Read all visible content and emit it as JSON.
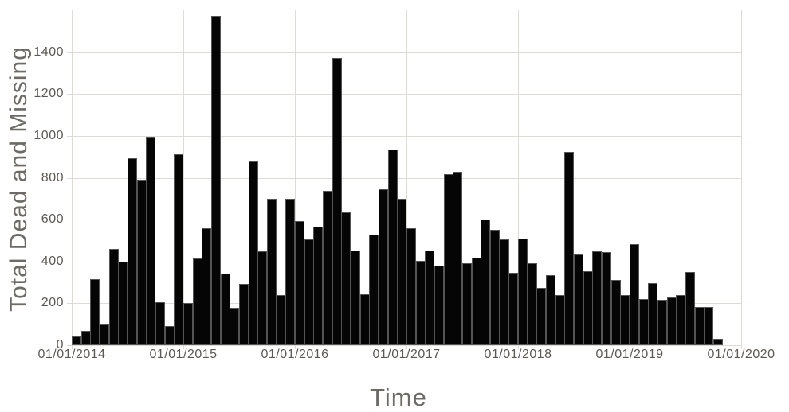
{
  "chart_data": {
    "type": "bar",
    "title": "",
    "xlabel": "Time",
    "ylabel": "Total Dead and Missing",
    "grid": true,
    "legend_position": "none",
    "ylim": [
      0,
      1600
    ],
    "x_slots": 72,
    "y_ticks": [
      0,
      200,
      400,
      600,
      800,
      1000,
      1200,
      1400
    ],
    "x_ticks": [
      {
        "label": "01/01/2014",
        "month_index": 0
      },
      {
        "label": "01/01/2015",
        "month_index": 12
      },
      {
        "label": "01/01/2016",
        "month_index": 24
      },
      {
        "label": "01/01/2017",
        "month_index": 36
      },
      {
        "label": "01/01/2018",
        "month_index": 48
      },
      {
        "label": "01/01/2019",
        "month_index": 60
      },
      {
        "label": "01/01/2020",
        "month_index": 72
      }
    ],
    "x": [
      "01/2014",
      "02/2014",
      "03/2014",
      "04/2014",
      "05/2014",
      "06/2014",
      "07/2014",
      "08/2014",
      "09/2014",
      "10/2014",
      "11/2014",
      "12/2014",
      "01/2015",
      "02/2015",
      "03/2015",
      "04/2015",
      "05/2015",
      "06/2015",
      "07/2015",
      "08/2015",
      "09/2015",
      "10/2015",
      "11/2015",
      "12/2015",
      "01/2016",
      "02/2016",
      "03/2016",
      "04/2016",
      "05/2016",
      "06/2016",
      "07/2016",
      "08/2016",
      "09/2016",
      "10/2016",
      "11/2016",
      "12/2016",
      "01/2017",
      "02/2017",
      "03/2017",
      "04/2017",
      "05/2017",
      "06/2017",
      "07/2017",
      "08/2017",
      "09/2017",
      "10/2017",
      "11/2017",
      "12/2017",
      "01/2018",
      "02/2018",
      "03/2018",
      "04/2018",
      "05/2018",
      "06/2018",
      "07/2018",
      "08/2018",
      "09/2018",
      "10/2018",
      "11/2018",
      "12/2018",
      "01/2019",
      "02/2019",
      "03/2019",
      "04/2019",
      "05/2019",
      "06/2019",
      "07/2019",
      "08/2019",
      "09/2019",
      "10/2019"
    ],
    "values": [
      43,
      70,
      314,
      102,
      461,
      401,
      894,
      792,
      995,
      204,
      93,
      912,
      200,
      416,
      558,
      1574,
      344,
      179,
      293,
      878,
      447,
      700,
      241,
      700,
      593,
      504,
      568,
      739,
      1374,
      636,
      454,
      245,
      530,
      745,
      937,
      700,
      557,
      403,
      451,
      380,
      817,
      830,
      390,
      420,
      602,
      552,
      504,
      346,
      511,
      390,
      274,
      336,
      238,
      922,
      436,
      355,
      450,
      443,
      311,
      241,
      484,
      219,
      298,
      216,
      230,
      241,
      351,
      181,
      184,
      30
    ],
    "colors": {
      "bar": "#050505",
      "bar_border": "#555555",
      "grid": "#dedbd7",
      "tick_text": "#5d5955",
      "axis_title_text": "#6e6a66",
      "background": "#ffffff"
    }
  }
}
